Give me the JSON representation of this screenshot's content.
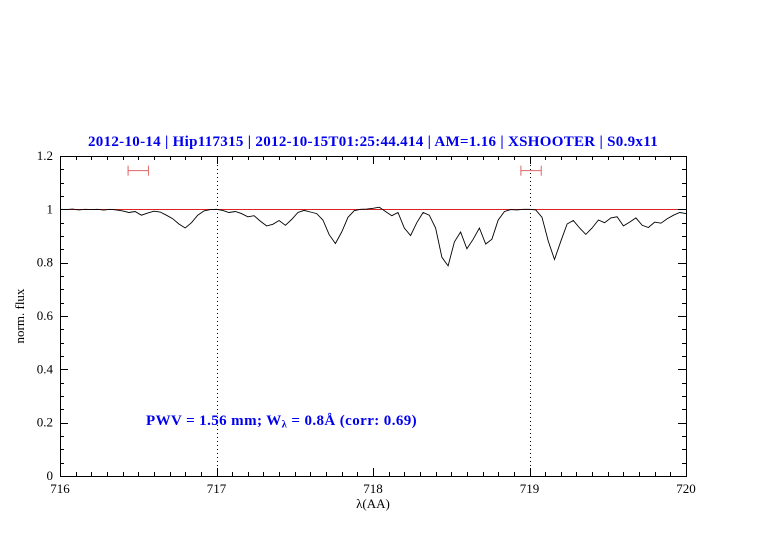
{
  "title": "2012-10-14 | Hip117315 | 2012-10-15T01:25:44.414 | AM=1.16 | XSHOOTER | S0.9x11",
  "annotation": {
    "pre": "PWV = 1.56 mm; W",
    "sub": "λ",
    "post": " = 0.8Å (corr: 0.69)"
  },
  "colors": {
    "accent_text": "#0000ee",
    "spectrum": "#000000",
    "continuum": "#dd2222",
    "marker": "#dd6666",
    "vline": "#000000",
    "axis": "#000000"
  },
  "chart_data": {
    "type": "line",
    "title": "2012-10-14 | Hip117315 | 2012-10-15T01:25:44.414 | AM=1.16 | XSHOOTER | S0.9x11",
    "xlabel": "λ(AA)",
    "ylabel": "norm. flux",
    "xlim": [
      716,
      720
    ],
    "ylim": [
      0,
      1.2
    ],
    "xticks": [
      716,
      717,
      718,
      719,
      720
    ],
    "xtick_labels": [
      "716",
      "717",
      "718",
      "719",
      "720"
    ],
    "yticks": [
      0,
      0.2,
      0.4,
      0.6,
      0.8,
      1,
      1.2
    ],
    "ytick_labels": [
      "0",
      "0.2",
      "0.4",
      "0.6",
      "0.8",
      "1",
      "1.2"
    ],
    "xminor": 0.1,
    "yminor": 0.05,
    "grid": false,
    "legend": "none",
    "vlines": [
      717,
      719
    ],
    "continuum_y": 1.0,
    "markers": [
      {
        "x": 716.5,
        "y": 1.145,
        "halfwidth": 0.065
      },
      {
        "x": 719.01,
        "y": 1.145,
        "halfwidth": 0.065
      }
    ],
    "series": [
      {
        "name": "observed normalized spectrum",
        "x": [
          716,
          716.04,
          716.08,
          716.12,
          716.16,
          716.2,
          716.24,
          716.28,
          716.32,
          716.36,
          716.4,
          716.44,
          716.48,
          716.52,
          716.56,
          716.6,
          716.64,
          716.68,
          716.72,
          716.76,
          716.8,
          716.84,
          716.88,
          716.92,
          716.96,
          717,
          717.04,
          717.08,
          717.12,
          717.16,
          717.2,
          717.24,
          717.28,
          717.32,
          717.36,
          717.4,
          717.44,
          717.48,
          717.52,
          717.56,
          717.6,
          717.64,
          717.68,
          717.72,
          717.76,
          717.8,
          717.84,
          717.88,
          717.92,
          717.96,
          718,
          718.04,
          718.08,
          718.12,
          718.16,
          718.2,
          718.24,
          718.28,
          718.32,
          718.36,
          718.4,
          718.44,
          718.48,
          718.52,
          718.56,
          718.6,
          718.64,
          718.68,
          718.72,
          718.76,
          718.8,
          718.84,
          718.88,
          718.92,
          718.96,
          719,
          719.04,
          719.08,
          719.12,
          719.16,
          719.2,
          719.24,
          719.28,
          719.32,
          719.36,
          719.4,
          719.44,
          719.48,
          719.52,
          719.56,
          719.6,
          719.64,
          719.68,
          719.72,
          719.76,
          719.8,
          719.84,
          719.88,
          719.92,
          719.96,
          720
        ],
        "y": [
          1.0,
          0.999,
          1.001,
          0.998,
          1.0,
          0.999,
          1.0,
          0.997,
          1.0,
          0.998,
          0.994,
          0.988,
          0.992,
          0.978,
          0.986,
          0.993,
          0.99,
          0.978,
          0.965,
          0.945,
          0.93,
          0.95,
          0.978,
          0.994,
          0.999,
          1.0,
          0.996,
          0.988,
          0.992,
          0.984,
          0.972,
          0.976,
          0.956,
          0.938,
          0.944,
          0.958,
          0.94,
          0.962,
          0.988,
          0.996,
          0.99,
          0.984,
          0.96,
          0.905,
          0.872,
          0.915,
          0.97,
          0.995,
          1.0,
          1.001,
          1.004,
          1.008,
          0.992,
          0.976,
          0.988,
          0.93,
          0.902,
          0.95,
          0.988,
          0.978,
          0.93,
          0.82,
          0.788,
          0.878,
          0.915,
          0.852,
          0.888,
          0.93,
          0.87,
          0.888,
          0.96,
          0.992,
          0.999,
          0.998,
          1.0,
          1.0,
          0.998,
          0.97,
          0.88,
          0.812,
          0.88,
          0.945,
          0.958,
          0.93,
          0.906,
          0.93,
          0.96,
          0.95,
          0.968,
          0.972,
          0.938,
          0.952,
          0.968,
          0.94,
          0.932,
          0.952,
          0.948,
          0.965,
          0.978,
          0.988,
          0.984
        ]
      }
    ]
  }
}
